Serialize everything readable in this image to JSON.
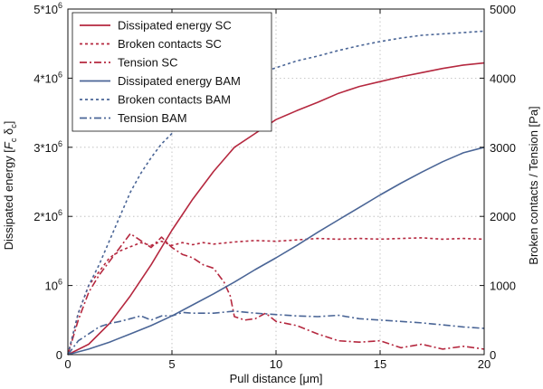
{
  "chart_data": {
    "type": "line",
    "xlabel": "Pull distance [μm]",
    "ylabel_left": "Dissipated energy [F_c δ_c]",
    "ylabel_right": "Broken contacts / Tension [Pa]",
    "xlim": [
      0,
      20
    ],
    "ylim_left": [
      0,
      5000000
    ],
    "ylim_right": [
      0,
      5000
    ],
    "grid": true,
    "legend_position": "top-left",
    "x_ticks": [
      0,
      5,
      10,
      15,
      20
    ],
    "left_ticks": [
      {
        "value": 0,
        "base": "0",
        "exp": ""
      },
      {
        "value": 1000000,
        "base": "10",
        "exp": "6"
      },
      {
        "value": 2000000,
        "base": "2*10",
        "exp": "6"
      },
      {
        "value": 3000000,
        "base": "3*10",
        "exp": "6"
      },
      {
        "value": 4000000,
        "base": "4*10",
        "exp": "6"
      },
      {
        "value": 5000000,
        "base": "5*10",
        "exp": "6"
      }
    ],
    "right_ticks": [
      0,
      1000,
      2000,
      3000,
      4000,
      5000
    ],
    "colors": {
      "sc": "#b5283f",
      "bam": "#4a6596"
    },
    "series": [
      {
        "name": "Dissipated energy SC",
        "axis": "left",
        "color": "#b5283f",
        "dash": "solid",
        "x": [
          0,
          1,
          2,
          3,
          4,
          5,
          6,
          7,
          8,
          9,
          10,
          11,
          12,
          13,
          14,
          15,
          16,
          17,
          18,
          19,
          20
        ],
        "y": [
          0,
          150000,
          450000,
          850000,
          1300000,
          1800000,
          2250000,
          2650000,
          3000000,
          3200000,
          3400000,
          3530000,
          3650000,
          3780000,
          3880000,
          3950000,
          4020000,
          4080000,
          4140000,
          4190000,
          4220000
        ]
      },
      {
        "name": "Broken contacts SC",
        "axis": "right",
        "color": "#b5283f",
        "dash": "3 3",
        "x": [
          0,
          0.5,
          1,
          1.5,
          2,
          2.5,
          3,
          3.5,
          4,
          4.5,
          5,
          5.5,
          6,
          6.5,
          7,
          8,
          9,
          10,
          11,
          12,
          13,
          14,
          15,
          16,
          17,
          18,
          19,
          20
        ],
        "y": [
          0,
          600,
          1000,
          1200,
          1400,
          1500,
          1560,
          1620,
          1580,
          1640,
          1580,
          1620,
          1590,
          1620,
          1600,
          1630,
          1650,
          1640,
          1660,
          1680,
          1670,
          1680,
          1670,
          1680,
          1690,
          1670,
          1680,
          1670
        ]
      },
      {
        "name": "Tension SC",
        "axis": "right",
        "color": "#b5283f",
        "dash": "8 3 2 3",
        "x": [
          0,
          0.5,
          1,
          1.5,
          2,
          2.5,
          3,
          3.5,
          4,
          4.5,
          5,
          5.5,
          6,
          6.5,
          7,
          7.5,
          7.8,
          8,
          8.5,
          9,
          9.5,
          10,
          11,
          12,
          13,
          14,
          15,
          16,
          17,
          18,
          19,
          20
        ],
        "y": [
          0,
          500,
          900,
          1150,
          1350,
          1550,
          1750,
          1650,
          1550,
          1700,
          1550,
          1450,
          1400,
          1300,
          1250,
          1050,
          850,
          550,
          500,
          520,
          600,
          480,
          420,
          300,
          200,
          180,
          200,
          100,
          150,
          80,
          120,
          80
        ]
      },
      {
        "name": "Dissipated energy BAM",
        "axis": "left",
        "color": "#4a6596",
        "dash": "solid",
        "x": [
          0,
          1,
          2,
          3,
          4,
          5,
          6,
          7,
          8,
          9,
          10,
          11,
          12,
          13,
          14,
          15,
          16,
          17,
          18,
          19,
          20
        ],
        "y": [
          0,
          80000,
          180000,
          300000,
          420000,
          560000,
          720000,
          880000,
          1050000,
          1230000,
          1400000,
          1580000,
          1770000,
          1950000,
          2130000,
          2310000,
          2480000,
          2640000,
          2790000,
          2920000,
          3000000
        ]
      },
      {
        "name": "Broken contacts BAM",
        "axis": "right",
        "color": "#4a6596",
        "dash": "3 3",
        "x": [
          0,
          0.5,
          1,
          1.5,
          2,
          2.5,
          3,
          3.5,
          4,
          4.5,
          5,
          5.5,
          6,
          7,
          8,
          9,
          10,
          11,
          12,
          13,
          14,
          15,
          16,
          17,
          18,
          19,
          20
        ],
        "y": [
          0,
          600,
          1000,
          1300,
          1650,
          2000,
          2350,
          2620,
          2850,
          3050,
          3200,
          3400,
          3550,
          3800,
          3950,
          4050,
          4150,
          4250,
          4320,
          4400,
          4470,
          4530,
          4580,
          4620,
          4640,
          4660,
          4680
        ]
      },
      {
        "name": "Tension BAM",
        "axis": "right",
        "color": "#4a6596",
        "dash": "8 3 2 3",
        "x": [
          0,
          0.5,
          1,
          1.5,
          2,
          2.5,
          3,
          3.5,
          4,
          4.5,
          5,
          5.5,
          6,
          7,
          8,
          9,
          10,
          11,
          12,
          13,
          14,
          15,
          16,
          17,
          18,
          19,
          20
        ],
        "y": [
          0,
          200,
          300,
          400,
          450,
          480,
          520,
          560,
          500,
          560,
          560,
          610,
          600,
          600,
          630,
          600,
          580,
          560,
          550,
          570,
          520,
          500,
          480,
          460,
          430,
          400,
          380
        ]
      }
    ]
  }
}
